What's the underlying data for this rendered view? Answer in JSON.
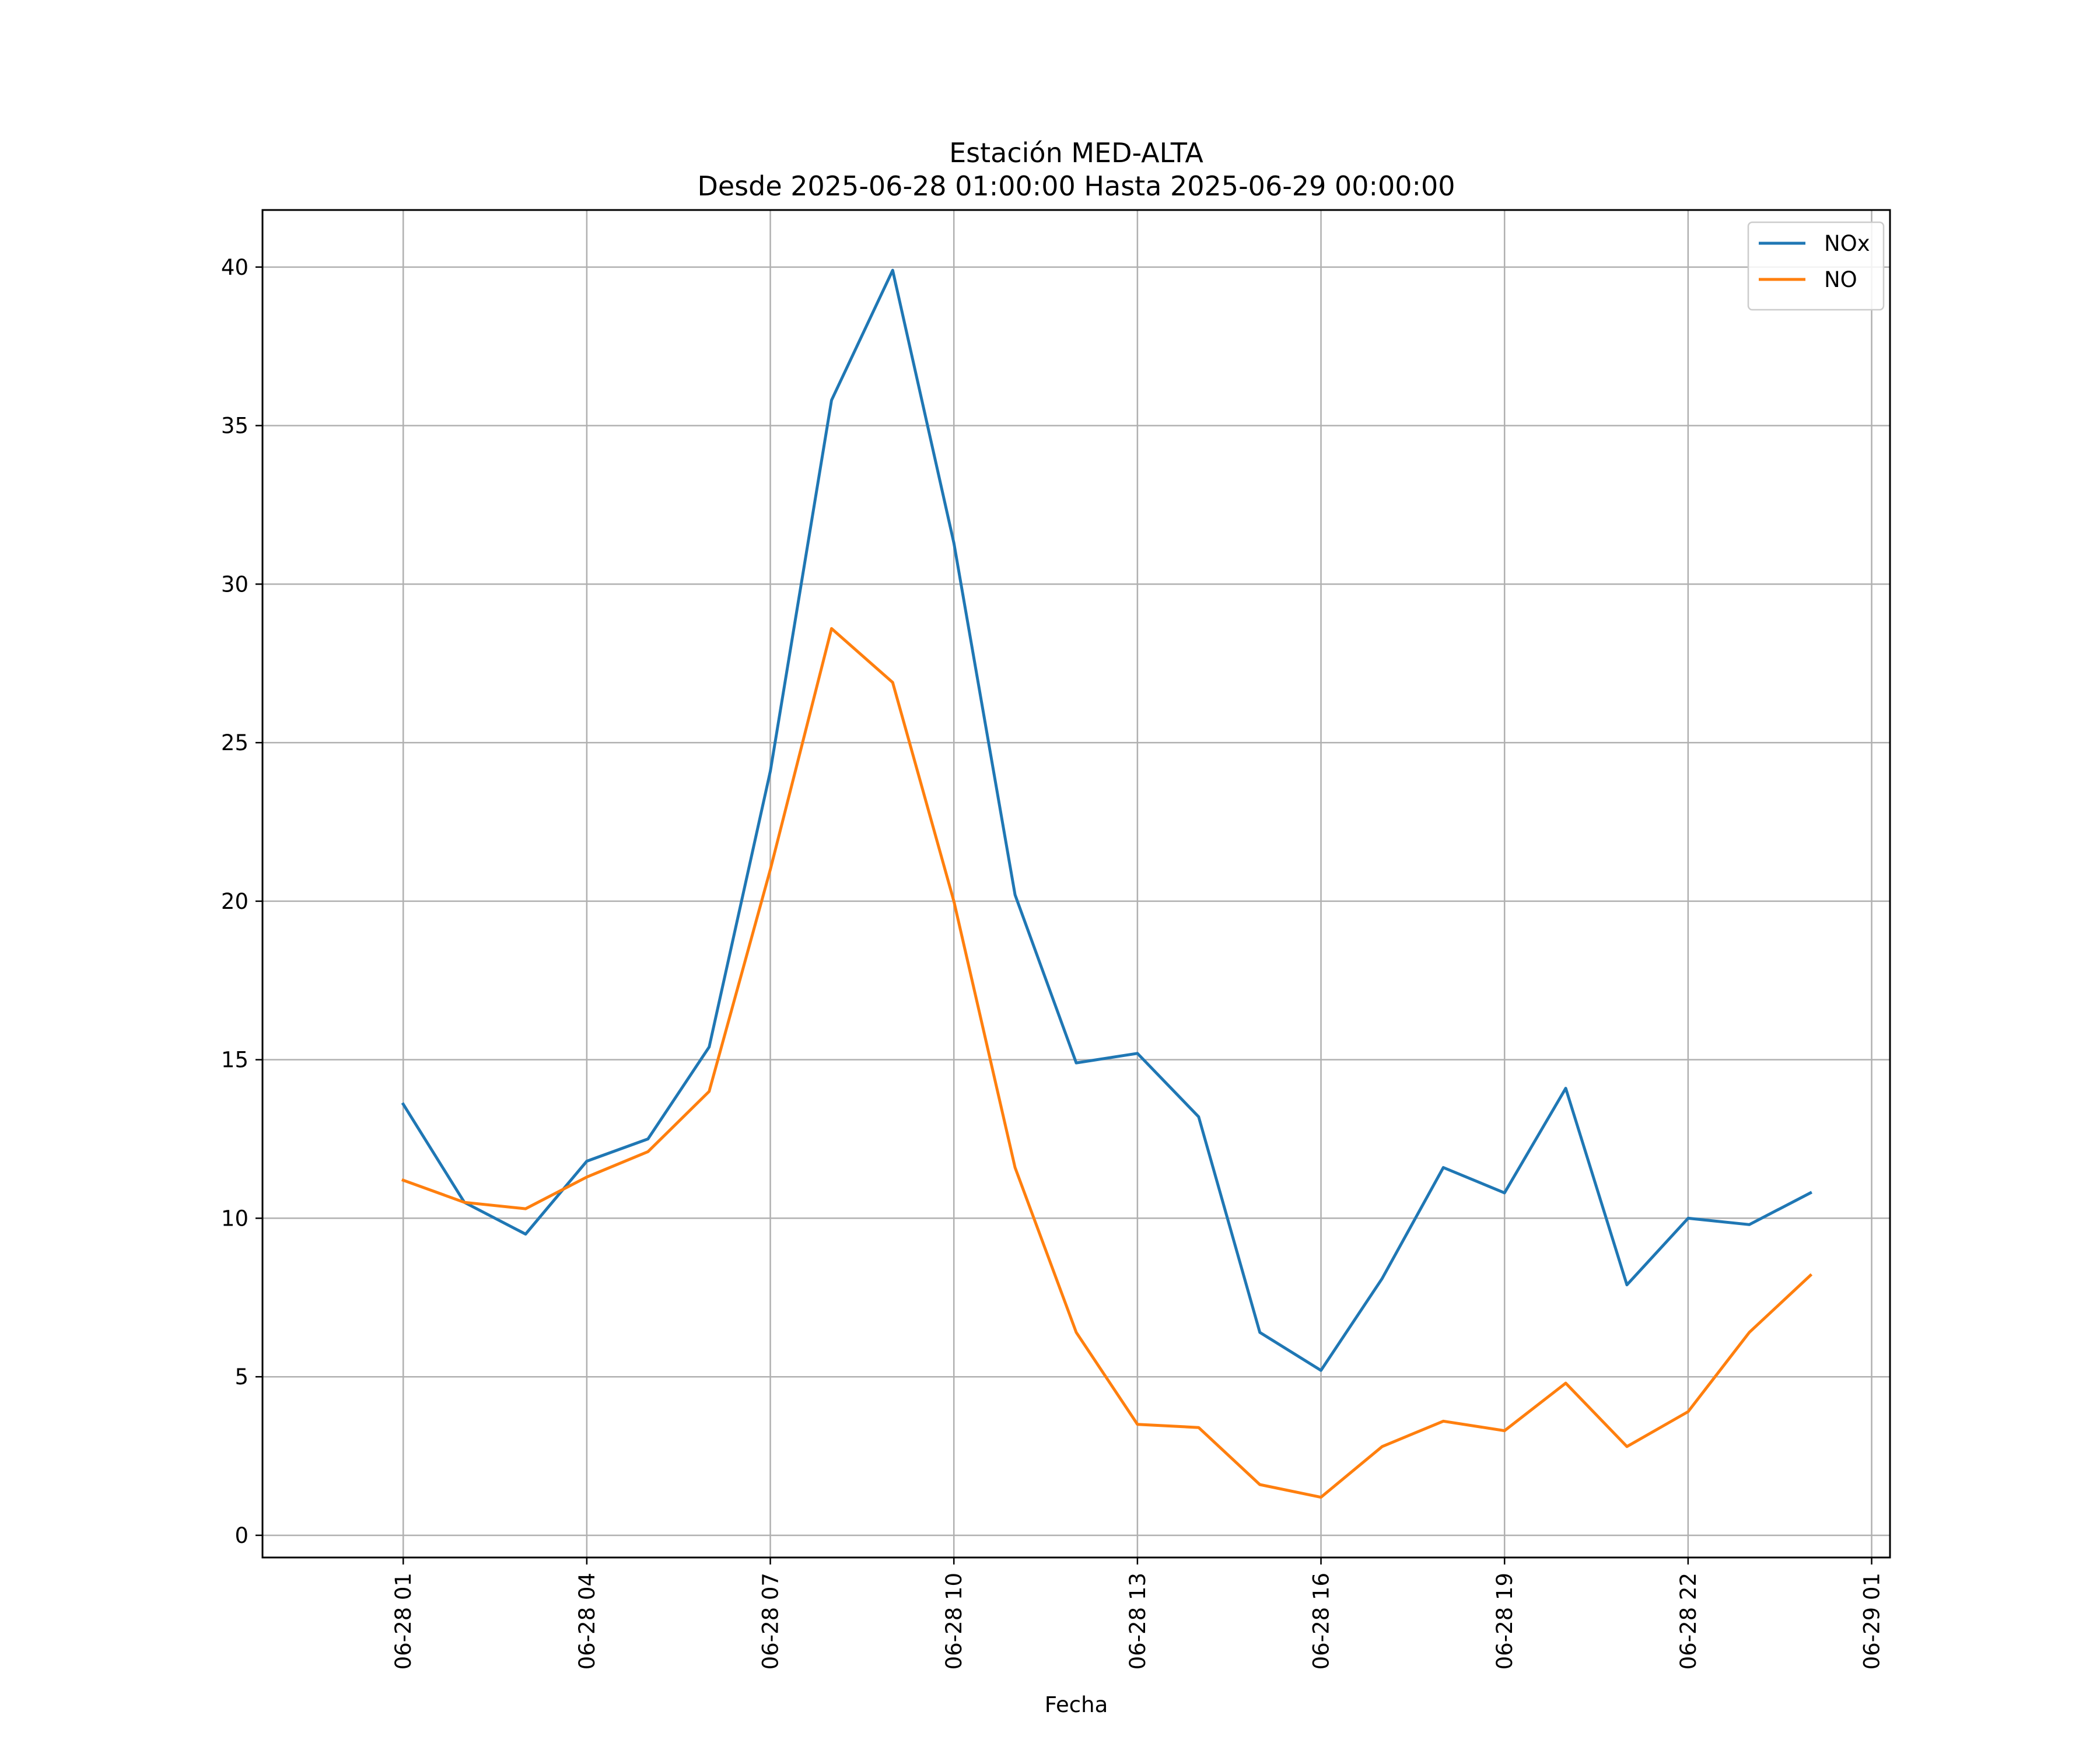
{
  "chart_data": {
    "type": "line",
    "title": "Estación MED-ALTA",
    "subtitle": "Desde 2025-06-28 01:00:00 Hasta 2025-06-29 00:00:00",
    "xlabel": "Fecha",
    "ylabel": "",
    "x": [
      "2025-06-28 01:00",
      "2025-06-28 02:00",
      "2025-06-28 03:00",
      "2025-06-28 04:00",
      "2025-06-28 05:00",
      "2025-06-28 06:00",
      "2025-06-28 07:00",
      "2025-06-28 08:00",
      "2025-06-28 09:00",
      "2025-06-28 10:00",
      "2025-06-28 11:00",
      "2025-06-28 12:00",
      "2025-06-28 13:00",
      "2025-06-28 14:00",
      "2025-06-28 15:00",
      "2025-06-28 16:00",
      "2025-06-28 17:00",
      "2025-06-28 18:00",
      "2025-06-28 19:00",
      "2025-06-28 20:00",
      "2025-06-28 21:00",
      "2025-06-28 22:00",
      "2025-06-28 23:00",
      "2025-06-29 00:00"
    ],
    "series": [
      {
        "name": "NOx",
        "color": "#1f77b4",
        "values": [
          13.6,
          10.5,
          9.5,
          11.8,
          12.5,
          15.4,
          24.1,
          35.8,
          39.9,
          31.3,
          20.2,
          14.9,
          15.2,
          13.2,
          6.4,
          5.2,
          8.1,
          11.6,
          10.8,
          14.1,
          7.9,
          10.0,
          9.8,
          10.8
        ]
      },
      {
        "name": "NO",
        "color": "#ff7f0e",
        "values": [
          11.2,
          10.5,
          10.3,
          11.3,
          12.1,
          14.0,
          21.0,
          28.6,
          26.9,
          20.0,
          11.6,
          6.4,
          3.5,
          3.4,
          1.6,
          1.2,
          2.8,
          3.6,
          3.3,
          4.8,
          2.8,
          3.9,
          6.4,
          8.2
        ]
      }
    ],
    "x_ticks": [
      "06-28 01",
      "06-28 04",
      "06-28 07",
      "06-28 10",
      "06-28 13",
      "06-28 16",
      "06-28 19",
      "06-28 22",
      "06-29 01"
    ],
    "y_ticks": [
      "0",
      "5",
      "10",
      "15",
      "20",
      "25",
      "30",
      "35",
      "40"
    ],
    "xlim": [
      "2025-06-27 22:42",
      "2025-06-29 01:18"
    ],
    "ylim": [
      -0.7,
      41.8
    ],
    "grid": true,
    "legend_position": "top-right"
  }
}
